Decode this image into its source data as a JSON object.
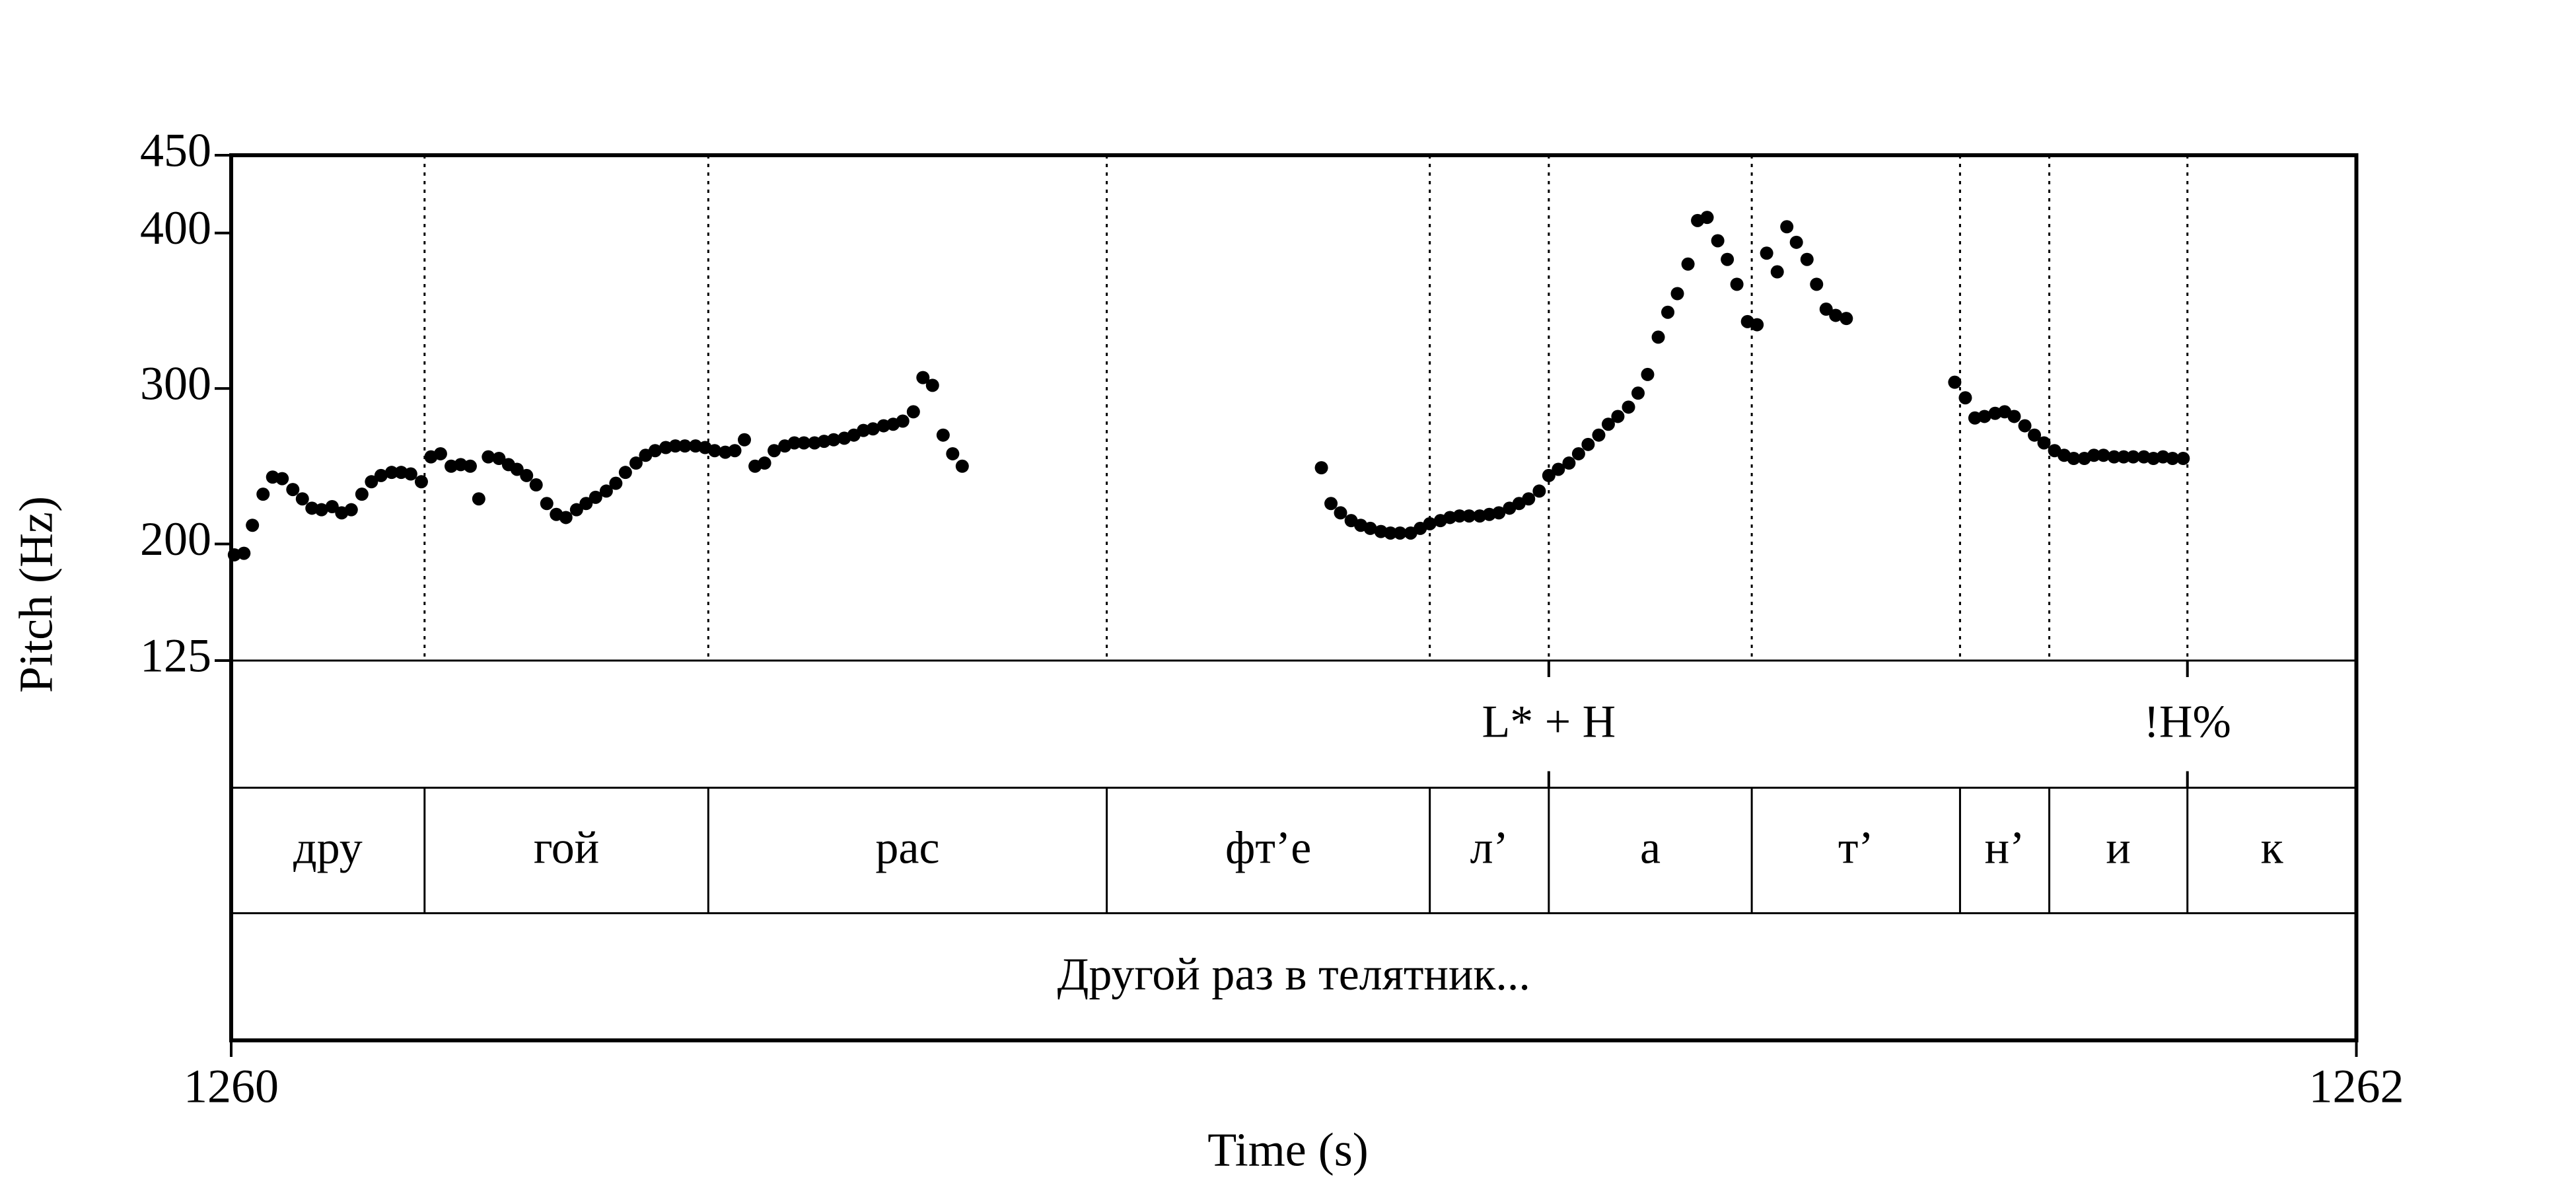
{
  "chart_data": {
    "type": "pitch",
    "xlabel": "Time (s)",
    "ylabel": "Pitch (Hz)",
    "xlim": [
      1260,
      1262
    ],
    "xticks": [
      1260,
      1262
    ],
    "ylim": [
      125,
      450
    ],
    "yticks": [
      125,
      200,
      300,
      400,
      450
    ],
    "color": "#000000",
    "x": [
      1260.003,
      1260.012,
      1260.02,
      1260.03,
      1260.039,
      1260.048,
      1260.058,
      1260.067,
      1260.076,
      1260.085,
      1260.095,
      1260.104,
      1260.113,
      1260.123,
      1260.132,
      1260.141,
      1260.151,
      1260.16,
      1260.169,
      1260.179,
      1260.188,
      1260.197,
      1260.207,
      1260.216,
      1260.225,
      1260.233,
      1260.242,
      1260.252,
      1260.261,
      1260.269,
      1260.278,
      1260.287,
      1260.297,
      1260.306,
      1260.315,
      1260.325,
      1260.334,
      1260.343,
      1260.353,
      1260.362,
      1260.371,
      1260.381,
      1260.39,
      1260.399,
      1260.409,
      1260.418,
      1260.427,
      1260.437,
      1260.446,
      1260.455,
      1260.465,
      1260.474,
      1260.483,
      1260.493,
      1260.502,
      1260.511,
      1260.521,
      1260.53,
      1260.539,
      1260.549,
      1260.558,
      1260.567,
      1260.577,
      1260.586,
      1260.595,
      1260.604,
      1260.614,
      1260.623,
      1260.632,
      1260.642,
      1260.651,
      1260.66,
      1260.67,
      1260.679,
      1260.688,
      1261.026,
      1261.035,
      1261.044,
      1261.054,
      1261.063,
      1261.072,
      1261.082,
      1261.091,
      1261.1,
      1261.11,
      1261.119,
      1261.128,
      1261.138,
      1261.147,
      1261.156,
      1261.165,
      1261.175,
      1261.184,
      1261.193,
      1261.203,
      1261.212,
      1261.221,
      1261.231,
      1261.24,
      1261.249,
      1261.259,
      1261.268,
      1261.277,
      1261.287,
      1261.296,
      1261.305,
      1261.315,
      1261.324,
      1261.333,
      1261.343,
      1261.352,
      1261.361,
      1261.371,
      1261.38,
      1261.389,
      1261.399,
      1261.408,
      1261.417,
      1261.427,
      1261.436,
      1261.445,
      1261.455,
      1261.464,
      1261.473,
      1261.483,
      1261.492,
      1261.501,
      1261.51,
      1261.52,
      1261.622,
      1261.632,
      1261.641,
      1261.65,
      1261.66,
      1261.669,
      1261.678,
      1261.688,
      1261.697,
      1261.706,
      1261.716,
      1261.725,
      1261.734,
      1261.744,
      1261.753,
      1261.762,
      1261.772,
      1261.781,
      1261.79,
      1261.8,
      1261.809,
      1261.818,
      1261.827,
      1261.837
    ],
    "values": [
      193,
      194,
      212,
      232,
      243,
      242,
      235,
      229,
      223,
      222,
      224,
      220,
      222,
      232,
      240,
      244,
      246,
      246,
      245,
      240,
      256,
      258,
      250,
      251,
      250,
      229,
      256,
      255,
      251,
      248,
      244,
      238,
      226,
      219,
      217,
      222,
      226,
      230,
      234,
      239,
      246,
      252,
      257,
      260,
      262,
      263,
      263,
      263,
      262,
      260,
      259,
      260,
      267,
      250,
      252,
      260,
      263,
      265,
      265,
      265,
      266,
      267,
      268,
      270,
      273,
      274,
      276,
      277,
      279,
      285,
      307,
      302,
      270,
      258,
      250,
      249,
      226,
      220,
      215,
      212,
      210,
      208,
      207,
      207,
      207,
      210,
      213,
      215,
      217,
      218,
      218,
      218,
      219,
      220,
      223,
      226,
      229,
      234,
      244,
      248,
      252,
      258,
      264,
      270,
      277,
      282,
      288,
      297,
      309,
      333,
      349,
      361,
      380,
      408,
      410,
      395,
      383,
      367,
      343,
      341,
      387,
      375,
      404,
      394,
      383,
      367,
      351,
      347,
      345,
      304,
      294,
      281,
      282,
      284,
      285,
      282,
      276,
      270,
      265,
      260,
      257,
      255,
      255,
      257,
      257,
      256,
      256,
      256,
      256,
      255,
      256,
      255,
      255
    ],
    "tiers": [
      {
        "points": [
          {
            "time": 1261.24,
            "label": "L* + H"
          },
          {
            "time": 1261.841,
            "label": "!H%"
          }
        ]
      },
      {
        "boundaries": [
          1260.182,
          1260.449,
          1260.824,
          1261.128,
          1261.24,
          1261.431,
          1261.627,
          1261.711,
          1261.841
        ],
        "labels": [
          "дру",
          "гой",
          "рас",
          "фт’е",
          "л’",
          "а",
          "т’",
          "н’",
          "и",
          "к"
        ]
      },
      {
        "labels": [
          "Другой раз в телятник..."
        ]
      }
    ]
  }
}
